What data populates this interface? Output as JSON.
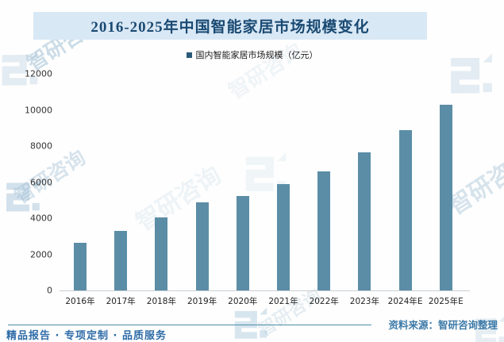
{
  "title": "2016-2025年中国智能家居市场规模变化",
  "legend": {
    "label": "国内智能家居市场规模（亿元）",
    "marker_color": "#2a5a7a"
  },
  "chart_data": {
    "type": "bar",
    "title": "2016-2025年中国智能家居市场规模变化",
    "categories": [
      "2016年",
      "2017年",
      "2018年",
      "2019年",
      "2020年",
      "2021年",
      "2022年",
      "2023年",
      "2024年E",
      "2025年E"
    ],
    "values": [
      2650,
      3300,
      4050,
      4900,
      5250,
      5900,
      6600,
      7650,
      8900,
      10300
    ],
    "series_name": "国内智能家居市场规模（亿元）",
    "xlabel": "",
    "ylabel": "",
    "unit": "亿元",
    "ylim": [
      0,
      12000
    ],
    "yticks": [
      0,
      2000,
      4000,
      6000,
      8000,
      10000,
      12000
    ],
    "grid": false,
    "legend_position": "top",
    "bar_color": "#5b8da6"
  },
  "footer": {
    "source": "资料来源：智研咨询整理",
    "slogan": "精品报告 · 专项定制 · 品质服务"
  },
  "watermark": {
    "text": "智研咨询"
  },
  "colors": {
    "title_band_bg": "#d9e8f5",
    "title_text": "#1a4a73",
    "bar": "#5b8da6",
    "axis_line": "#c9ced4",
    "footer_line": "#4b8fa6",
    "source_text": "#3d7aa8",
    "slogan_text": "#2e6ca8",
    "watermark": "#8fb3cc"
  }
}
